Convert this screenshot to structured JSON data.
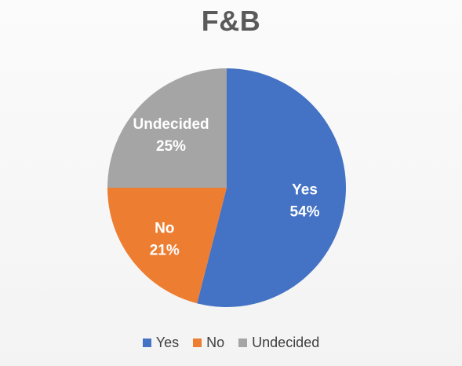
{
  "chart_data": {
    "type": "pie",
    "title": "F&B",
    "slices": [
      {
        "label": "Yes",
        "value": 54,
        "value_label": "54%",
        "color": "#4472c4"
      },
      {
        "label": "No",
        "value": 21,
        "value_label": "21%",
        "color": "#ed7d31"
      },
      {
        "label": "Undecided",
        "value": 25,
        "value_label": "25%",
        "color": "#a5a5a5"
      }
    ],
    "legend_position": "bottom",
    "start_angle": "12 o'clock",
    "direction": "clockwise"
  }
}
